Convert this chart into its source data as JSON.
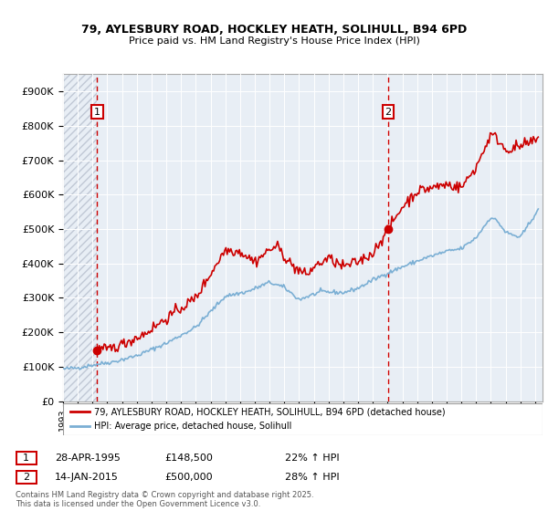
{
  "title1": "79, AYLESBURY ROAD, HOCKLEY HEATH, SOLIHULL, B94 6PD",
  "title2": "Price paid vs. HM Land Registry's House Price Index (HPI)",
  "legend_line1": "79, AYLESBURY ROAD, HOCKLEY HEATH, SOLIHULL, B94 6PD (detached house)",
  "legend_line2": "HPI: Average price, detached house, Solihull",
  "footer": "Contains HM Land Registry data © Crown copyright and database right 2025.\nThis data is licensed under the Open Government Licence v3.0.",
  "annotation1": {
    "num": "1",
    "date": "28-APR-1995",
    "price": "£148,500",
    "change": "22% ↑ HPI"
  },
  "annotation2": {
    "num": "2",
    "date": "14-JAN-2015",
    "price": "£500,000",
    "change": "28% ↑ HPI"
  },
  "vline1_x": 1995.32,
  "vline2_x": 2015.04,
  "sale1_x": 1995.32,
  "sale1_y": 148500,
  "sale2_x": 2015.04,
  "sale2_y": 500000,
  "ylim": [
    0,
    950000
  ],
  "xlim": [
    1993.0,
    2025.5
  ],
  "red_color": "#cc0000",
  "blue_color": "#7bafd4",
  "background_color": "#e8eef5",
  "hatch_color": "#c0c8d5",
  "grid_color": "#ffffff",
  "vline_color": "#cc0000",
  "hatch_end_x": 1995.32
}
